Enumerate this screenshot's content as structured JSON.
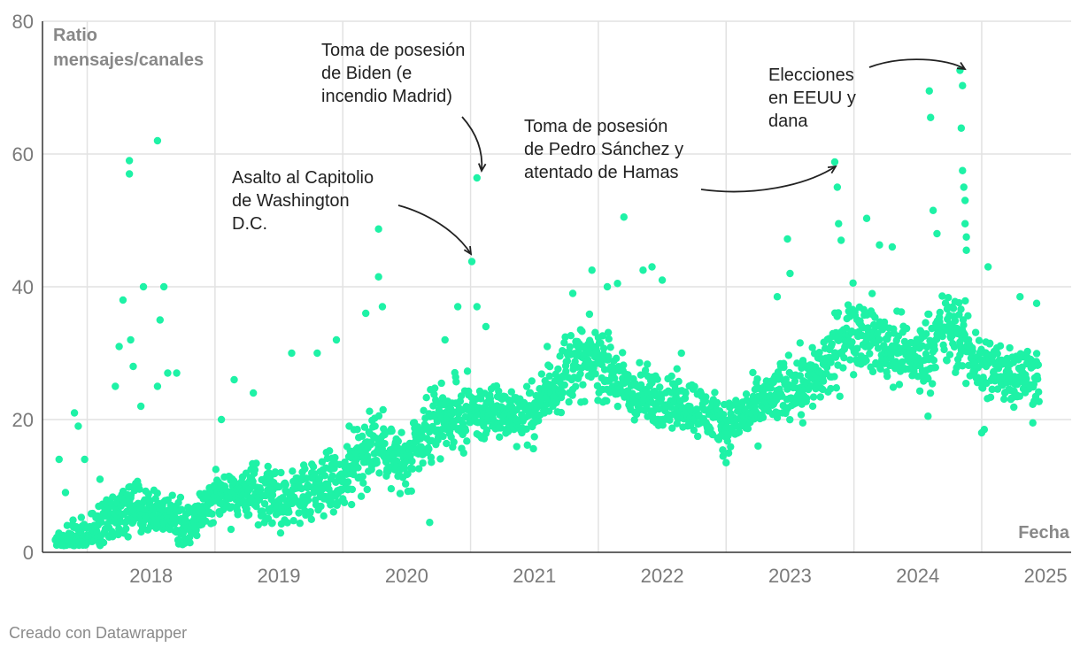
{
  "footer": "Creado con Datawrapper",
  "chart_data": {
    "type": "scatter",
    "ylabel": "Ratio mensajes/canales",
    "ylabel_lines": [
      "Ratio",
      "mensajes/canales"
    ],
    "xlabel": "Fecha",
    "xlim": [
      2017.65,
      2025.7
    ],
    "ylim": [
      0,
      80
    ],
    "y_ticks": [
      0,
      20,
      40,
      60,
      80
    ],
    "x_ticks": [
      2018,
      2019,
      2020,
      2021,
      2022,
      2023,
      2024,
      2025
    ],
    "point_color": "#1ef2a6",
    "grid": true,
    "annotations": [
      {
        "lines": [
          "Asalto al Capitolio",
          "de Washington",
          "D.C."
        ],
        "point": [
          2021.01,
          43.8
        ]
      },
      {
        "lines": [
          "Toma de posesión",
          "de Biden (e",
          "incendio Madrid)"
        ],
        "point": [
          2021.05,
          56.4
        ]
      },
      {
        "lines": [
          "Toma de posesión",
          "de Pedro Sánchez y",
          "atentado de Hamas"
        ],
        "point": [
          2023.85,
          58.8
        ]
      },
      {
        "lines": [
          "Elecciones",
          "en EEUU y",
          "dana"
        ],
        "point": [
          2024.83,
          72.6
        ]
      }
    ],
    "segments": [
      [
        2017.75,
        1,
        1.5,
        2
      ],
      [
        2017.9,
        2,
        2.5,
        3
      ],
      [
        2018.05,
        3,
        2.5,
        3
      ],
      [
        2018.25,
        6,
        3.5,
        5
      ],
      [
        2018.45,
        7,
        3,
        5
      ],
      [
        2018.6,
        6,
        3,
        5
      ],
      [
        2018.8,
        4,
        2.5,
        5
      ],
      [
        2019.0,
        9,
        3.5,
        6
      ],
      [
        2019.25,
        9,
        3.5,
        5
      ],
      [
        2019.5,
        8,
        3.5,
        5
      ],
      [
        2019.75,
        10,
        4,
        5
      ],
      [
        2020.0,
        11,
        4,
        5
      ],
      [
        2020.25,
        17,
        5,
        5
      ],
      [
        2020.5,
        13,
        4,
        5
      ],
      [
        2020.75,
        20,
        4.5,
        5
      ],
      [
        2021.0,
        21,
        4,
        5
      ],
      [
        2021.25,
        21,
        3.5,
        5
      ],
      [
        2021.5,
        21,
        3.5,
        5
      ],
      [
        2021.75,
        28,
        4.5,
        5
      ],
      [
        2022.0,
        29,
        4.5,
        5
      ],
      [
        2022.25,
        24,
        4,
        5
      ],
      [
        2022.5,
        23,
        3.5,
        5
      ],
      [
        2022.75,
        22,
        3.5,
        5
      ],
      [
        2023.0,
        19,
        3,
        5
      ],
      [
        2023.25,
        22,
        3.5,
        5
      ],
      [
        2023.5,
        25,
        4,
        5
      ],
      [
        2023.75,
        27,
        4.5,
        5
      ],
      [
        2024.0,
        34,
        5,
        5
      ],
      [
        2024.25,
        31,
        4.5,
        5
      ],
      [
        2024.5,
        29,
        4.5,
        5
      ],
      [
        2024.75,
        34,
        5,
        5
      ],
      [
        2025.0,
        28,
        4.5,
        5
      ],
      [
        2025.25,
        27,
        4,
        5
      ],
      [
        2025.45,
        27,
        4,
        5
      ]
    ],
    "outliers": [
      [
        2017.78,
        14
      ],
      [
        2017.83,
        9
      ],
      [
        2017.9,
        21
      ],
      [
        2017.93,
        19
      ],
      [
        2017.98,
        14
      ],
      [
        2018.1,
        11
      ],
      [
        2018.22,
        25
      ],
      [
        2018.25,
        31
      ],
      [
        2018.28,
        38
      ],
      [
        2018.33,
        59
      ],
      [
        2018.33,
        57
      ],
      [
        2018.34,
        32
      ],
      [
        2018.36,
        28
      ],
      [
        2018.44,
        40
      ],
      [
        2018.42,
        22
      ],
      [
        2018.55,
        62
      ],
      [
        2018.55,
        25
      ],
      [
        2018.57,
        35
      ],
      [
        2018.6,
        40
      ],
      [
        2018.63,
        27
      ],
      [
        2018.7,
        27
      ],
      [
        2019.05,
        20
      ],
      [
        2019.15,
        26
      ],
      [
        2019.3,
        24
      ],
      [
        2019.6,
        30
      ],
      [
        2019.8,
        30
      ],
      [
        2019.95,
        32
      ],
      [
        2020.05,
        19
      ],
      [
        2020.18,
        36
      ],
      [
        2020.28,
        48.7
      ],
      [
        2020.28,
        41.5
      ],
      [
        2020.31,
        37
      ],
      [
        2020.68,
        4.5
      ],
      [
        2020.8,
        32
      ],
      [
        2020.9,
        37
      ],
      [
        2021.01,
        43.8
      ],
      [
        2021.05,
        56.4
      ],
      [
        2021.05,
        37
      ],
      [
        2021.12,
        34
      ],
      [
        2021.6,
        31
      ],
      [
        2021.8,
        39
      ],
      [
        2021.95,
        42.5
      ],
      [
        2022.07,
        40
      ],
      [
        2022.15,
        40.5
      ],
      [
        2022.2,
        50.5
      ],
      [
        2022.35,
        42.5
      ],
      [
        2022.42,
        43
      ],
      [
        2022.5,
        41
      ],
      [
        2022.65,
        30
      ],
      [
        2023.0,
        13.5
      ],
      [
        2023.25,
        16
      ],
      [
        2023.4,
        38.5
      ],
      [
        2023.48,
        47.2
      ],
      [
        2023.5,
        42
      ],
      [
        2023.6,
        19.5
      ],
      [
        2023.85,
        58.8
      ],
      [
        2023.87,
        55
      ],
      [
        2023.88,
        49.5
      ],
      [
        2023.9,
        47
      ],
      [
        2024.1,
        50.3
      ],
      [
        2024.2,
        46.3
      ],
      [
        2024.3,
        46
      ],
      [
        2024.58,
        20.5
      ],
      [
        2024.59,
        69.5
      ],
      [
        2024.6,
        65.5
      ],
      [
        2024.62,
        51.5
      ],
      [
        2024.65,
        48
      ],
      [
        2024.83,
        72.6
      ],
      [
        2024.85,
        70.3
      ],
      [
        2024.84,
        63.9
      ],
      [
        2024.85,
        57.5
      ],
      [
        2024.86,
        55
      ],
      [
        2024.87,
        53
      ],
      [
        2024.87,
        49.5
      ],
      [
        2024.88,
        47.5
      ],
      [
        2024.88,
        45.5
      ],
      [
        2025.0,
        18
      ],
      [
        2025.02,
        18.5
      ],
      [
        2025.05,
        43
      ],
      [
        2025.3,
        38.5
      ],
      [
        2025.4,
        19.5
      ],
      [
        2025.43,
        37.5
      ]
    ]
  }
}
